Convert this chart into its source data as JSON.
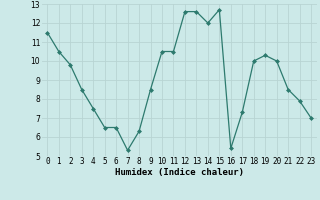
{
  "x": [
    0,
    1,
    2,
    3,
    4,
    5,
    6,
    7,
    8,
    9,
    10,
    11,
    12,
    13,
    14,
    15,
    16,
    17,
    18,
    19,
    20,
    21,
    22,
    23
  ],
  "y": [
    11.5,
    10.5,
    9.8,
    8.5,
    7.5,
    6.5,
    6.5,
    5.3,
    6.3,
    8.5,
    10.5,
    10.5,
    12.6,
    12.6,
    12.0,
    12.7,
    5.4,
    7.3,
    10.0,
    10.3,
    10.0,
    8.5,
    7.9,
    7.0
  ],
  "xlabel": "Humidex (Indice chaleur)",
  "ylim": [
    5,
    13
  ],
  "xlim": [
    -0.5,
    23.5
  ],
  "yticks": [
    5,
    6,
    7,
    8,
    9,
    10,
    11,
    12,
    13
  ],
  "xticks": [
    0,
    1,
    2,
    3,
    4,
    5,
    6,
    7,
    8,
    9,
    10,
    11,
    12,
    13,
    14,
    15,
    16,
    17,
    18,
    19,
    20,
    21,
    22,
    23
  ],
  "line_color": "#2d7a6e",
  "marker": "D",
  "marker_size": 2.0,
  "line_width": 0.9,
  "bg_color": "#cce9e8",
  "grid_color": "#b8d4d3",
  "tick_fontsize": 5.5,
  "xlabel_fontsize": 6.5
}
